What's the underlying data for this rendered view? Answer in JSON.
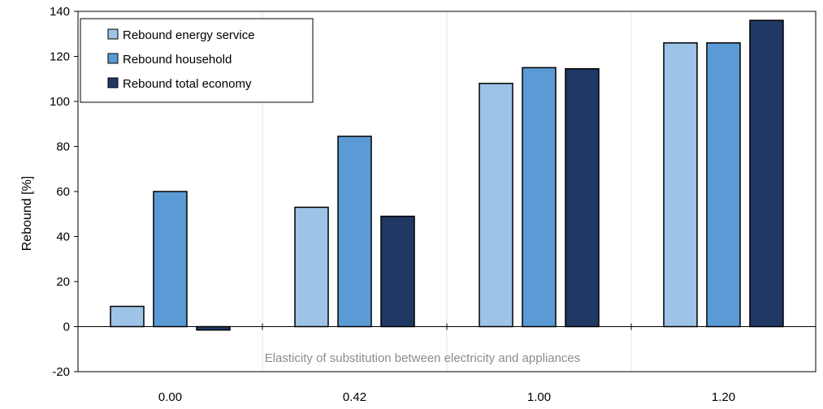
{
  "chart_data": {
    "type": "bar",
    "categories": [
      "0.00",
      "0.42",
      "1.00",
      "1.20"
    ],
    "series": [
      {
        "name": "Rebound energy service",
        "color": "#9dc3e6",
        "values": [
          9,
          53,
          108,
          126
        ]
      },
      {
        "name": "Rebound household",
        "color": "#5b9bd5",
        "values": [
          60,
          84.5,
          115,
          126
        ]
      },
      {
        "name": "Rebound total economy",
        "color": "#203864",
        "values": [
          -1.5,
          49,
          114.5,
          136
        ]
      }
    ],
    "ylabel": "Rebound [%]",
    "xlabel": "",
    "ylim": [
      -20,
      140
    ],
    "yticks": [
      "-20",
      "0",
      "20",
      "40",
      "60",
      "80",
      "100",
      "120",
      "140"
    ],
    "annotation": "Elasticity of substitution  between electricity  and appliances",
    "grid": "vertical",
    "legend_position": "top-left"
  }
}
